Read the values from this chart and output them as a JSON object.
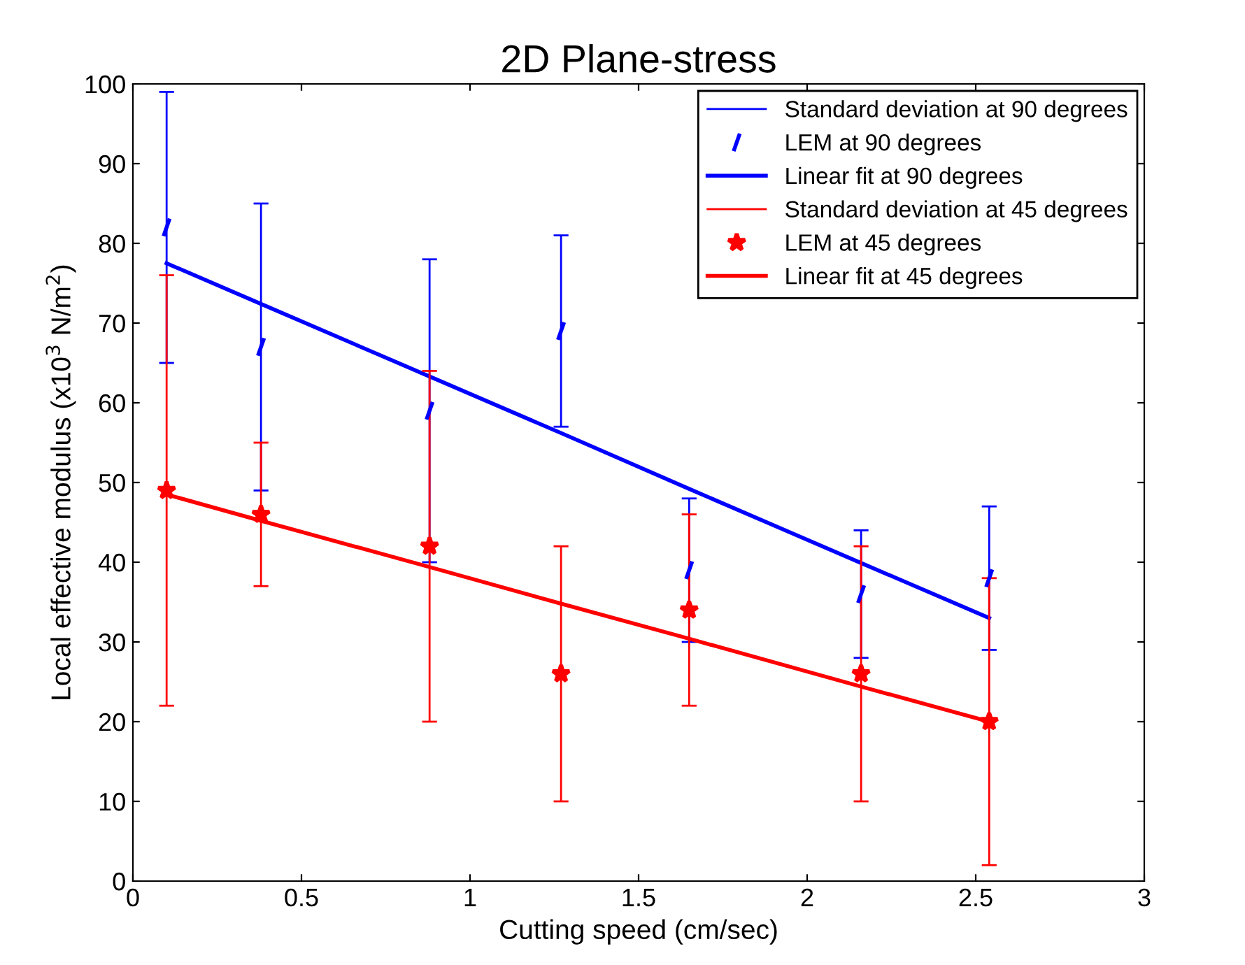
{
  "chart_data": {
    "type": "scatter",
    "title": "2D Plane-stress",
    "xlabel": "Cutting speed (cm/sec)",
    "ylabel": "Local effective modulus (x10$^{3}$ N/m$^{2}$)",
    "xlim": [
      0,
      3
    ],
    "xticks": [
      0,
      0.5,
      1,
      1.5,
      2,
      2.5,
      3
    ],
    "ylim": [
      0,
      100
    ],
    "yticks": [
      0,
      10,
      20,
      30,
      40,
      50,
      60,
      70,
      80,
      90,
      100
    ],
    "x": [
      0.1,
      0.38,
      0.88,
      1.27,
      1.65,
      2.16,
      2.54
    ],
    "grid": false,
    "legend": "top right",
    "series": [
      {
        "name": "Standard deviation at 90 degrees",
        "type": "line",
        "color": "#0000ff",
        "values": [
          null,
          null,
          null,
          null,
          null,
          null,
          null
        ]
      },
      {
        "name": "LEM at 90 degrees",
        "color": "#0000ff",
        "values": [
          82,
          67,
          59,
          69,
          39,
          36,
          38
        ],
        "errors": [
          17,
          18,
          19,
          12,
          9,
          8,
          9
        ]
      },
      {
        "name": "Linear fit at 90 degrees",
        "type": "line",
        "marker": "none",
        "color": "#0000ff",
        "values": [
          77.5,
          72.4,
          63.3,
          56.2,
          49.2,
          39.9,
          33
        ]
      },
      {
        "name": "Standard deviation at 45 degrees",
        "type": "line",
        "color": "#ff0000",
        "values": [
          null,
          null,
          null,
          null,
          null,
          null,
          null
        ]
      },
      {
        "name": "LEM at 45 degrees",
        "marker": "star",
        "color": "#ff0000",
        "values": [
          49,
          46,
          42,
          26,
          34,
          26,
          20
        ],
        "errors": [
          27,
          9,
          22,
          16,
          12,
          16,
          18
        ]
      },
      {
        "name": "Linear fit at 45 degrees",
        "type": "line",
        "marker": "none",
        "color": "#ff0000",
        "values": [
          48.5,
          45.2,
          39.4,
          34.8,
          30.4,
          24.4,
          20
        ]
      }
    ]
  }
}
